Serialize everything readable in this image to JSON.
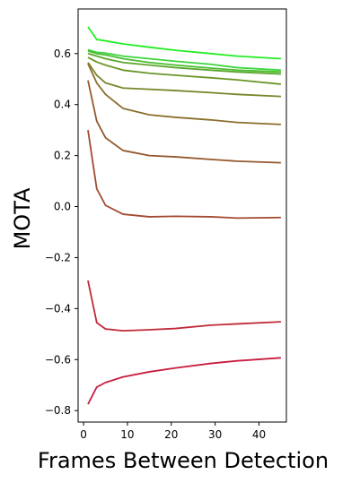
{
  "chart_data": {
    "type": "line",
    "title": "",
    "xlabel": "Frames Between Detection",
    "ylabel": "MOTA",
    "xlim": [
      -1.25,
      46.25
    ],
    "ylim": [
      -0.845,
      0.775
    ],
    "x_ticks": [
      0,
      10,
      20,
      30,
      40
    ],
    "y_ticks": [
      -0.8,
      -0.6,
      -0.4,
      -0.2,
      0.0,
      0.2,
      0.4,
      0.6
    ],
    "y_tick_labels": [
      "−0.8",
      "−0.6",
      "−0.4",
      "−0.2",
      "0.0",
      "0.2",
      "0.4",
      "0.6"
    ],
    "grid": false,
    "legend": "none",
    "x": [
      1,
      3,
      5,
      9,
      15,
      21,
      29,
      35,
      45
    ],
    "series": [
      {
        "color": "#22ee22",
        "values": [
          0.705,
          0.655,
          0.65,
          0.638,
          0.625,
          0.613,
          0.6,
          0.59,
          0.58
        ]
      },
      {
        "color": "#3cd63c",
        "values": [
          0.615,
          0.605,
          0.602,
          0.59,
          0.58,
          0.57,
          0.558,
          0.545,
          0.535
        ]
      },
      {
        "color": "#4cbd30",
        "values": [
          0.61,
          0.6,
          0.595,
          0.58,
          0.565,
          0.555,
          0.543,
          0.535,
          0.528
        ]
      },
      {
        "color": "#5ca62c",
        "values": [
          0.6,
          0.59,
          0.58,
          0.565,
          0.555,
          0.545,
          0.535,
          0.528,
          0.52
        ]
      },
      {
        "color": "#6a9628",
        "values": [
          0.585,
          0.567,
          0.555,
          0.535,
          0.523,
          0.515,
          0.505,
          0.497,
          0.48
        ]
      },
      {
        "color": "#7a8428",
        "values": [
          0.565,
          0.515,
          0.485,
          0.465,
          0.46,
          0.455,
          0.447,
          0.44,
          0.432
        ]
      },
      {
        "color": "#8a6e2c",
        "values": [
          0.56,
          0.485,
          0.44,
          0.385,
          0.36,
          0.35,
          0.34,
          0.33,
          0.322
        ]
      },
      {
        "color": "#94582c",
        "values": [
          0.495,
          0.335,
          0.27,
          0.22,
          0.2,
          0.195,
          0.185,
          0.178,
          0.172
        ]
      },
      {
        "color": "#a24a30",
        "values": [
          0.3,
          0.07,
          0.005,
          -0.03,
          -0.04,
          -0.038,
          -0.04,
          -0.045,
          -0.043
        ]
      },
      {
        "color": "#c02a38",
        "values": [
          -0.29,
          -0.455,
          -0.48,
          -0.487,
          -0.483,
          -0.478,
          -0.465,
          -0.46,
          -0.452
        ]
      },
      {
        "color": "#c81c3c",
        "values": [
          -0.775,
          -0.708,
          -0.69,
          -0.668,
          -0.648,
          -0.633,
          -0.615,
          -0.605,
          -0.593
        ]
      }
    ]
  }
}
